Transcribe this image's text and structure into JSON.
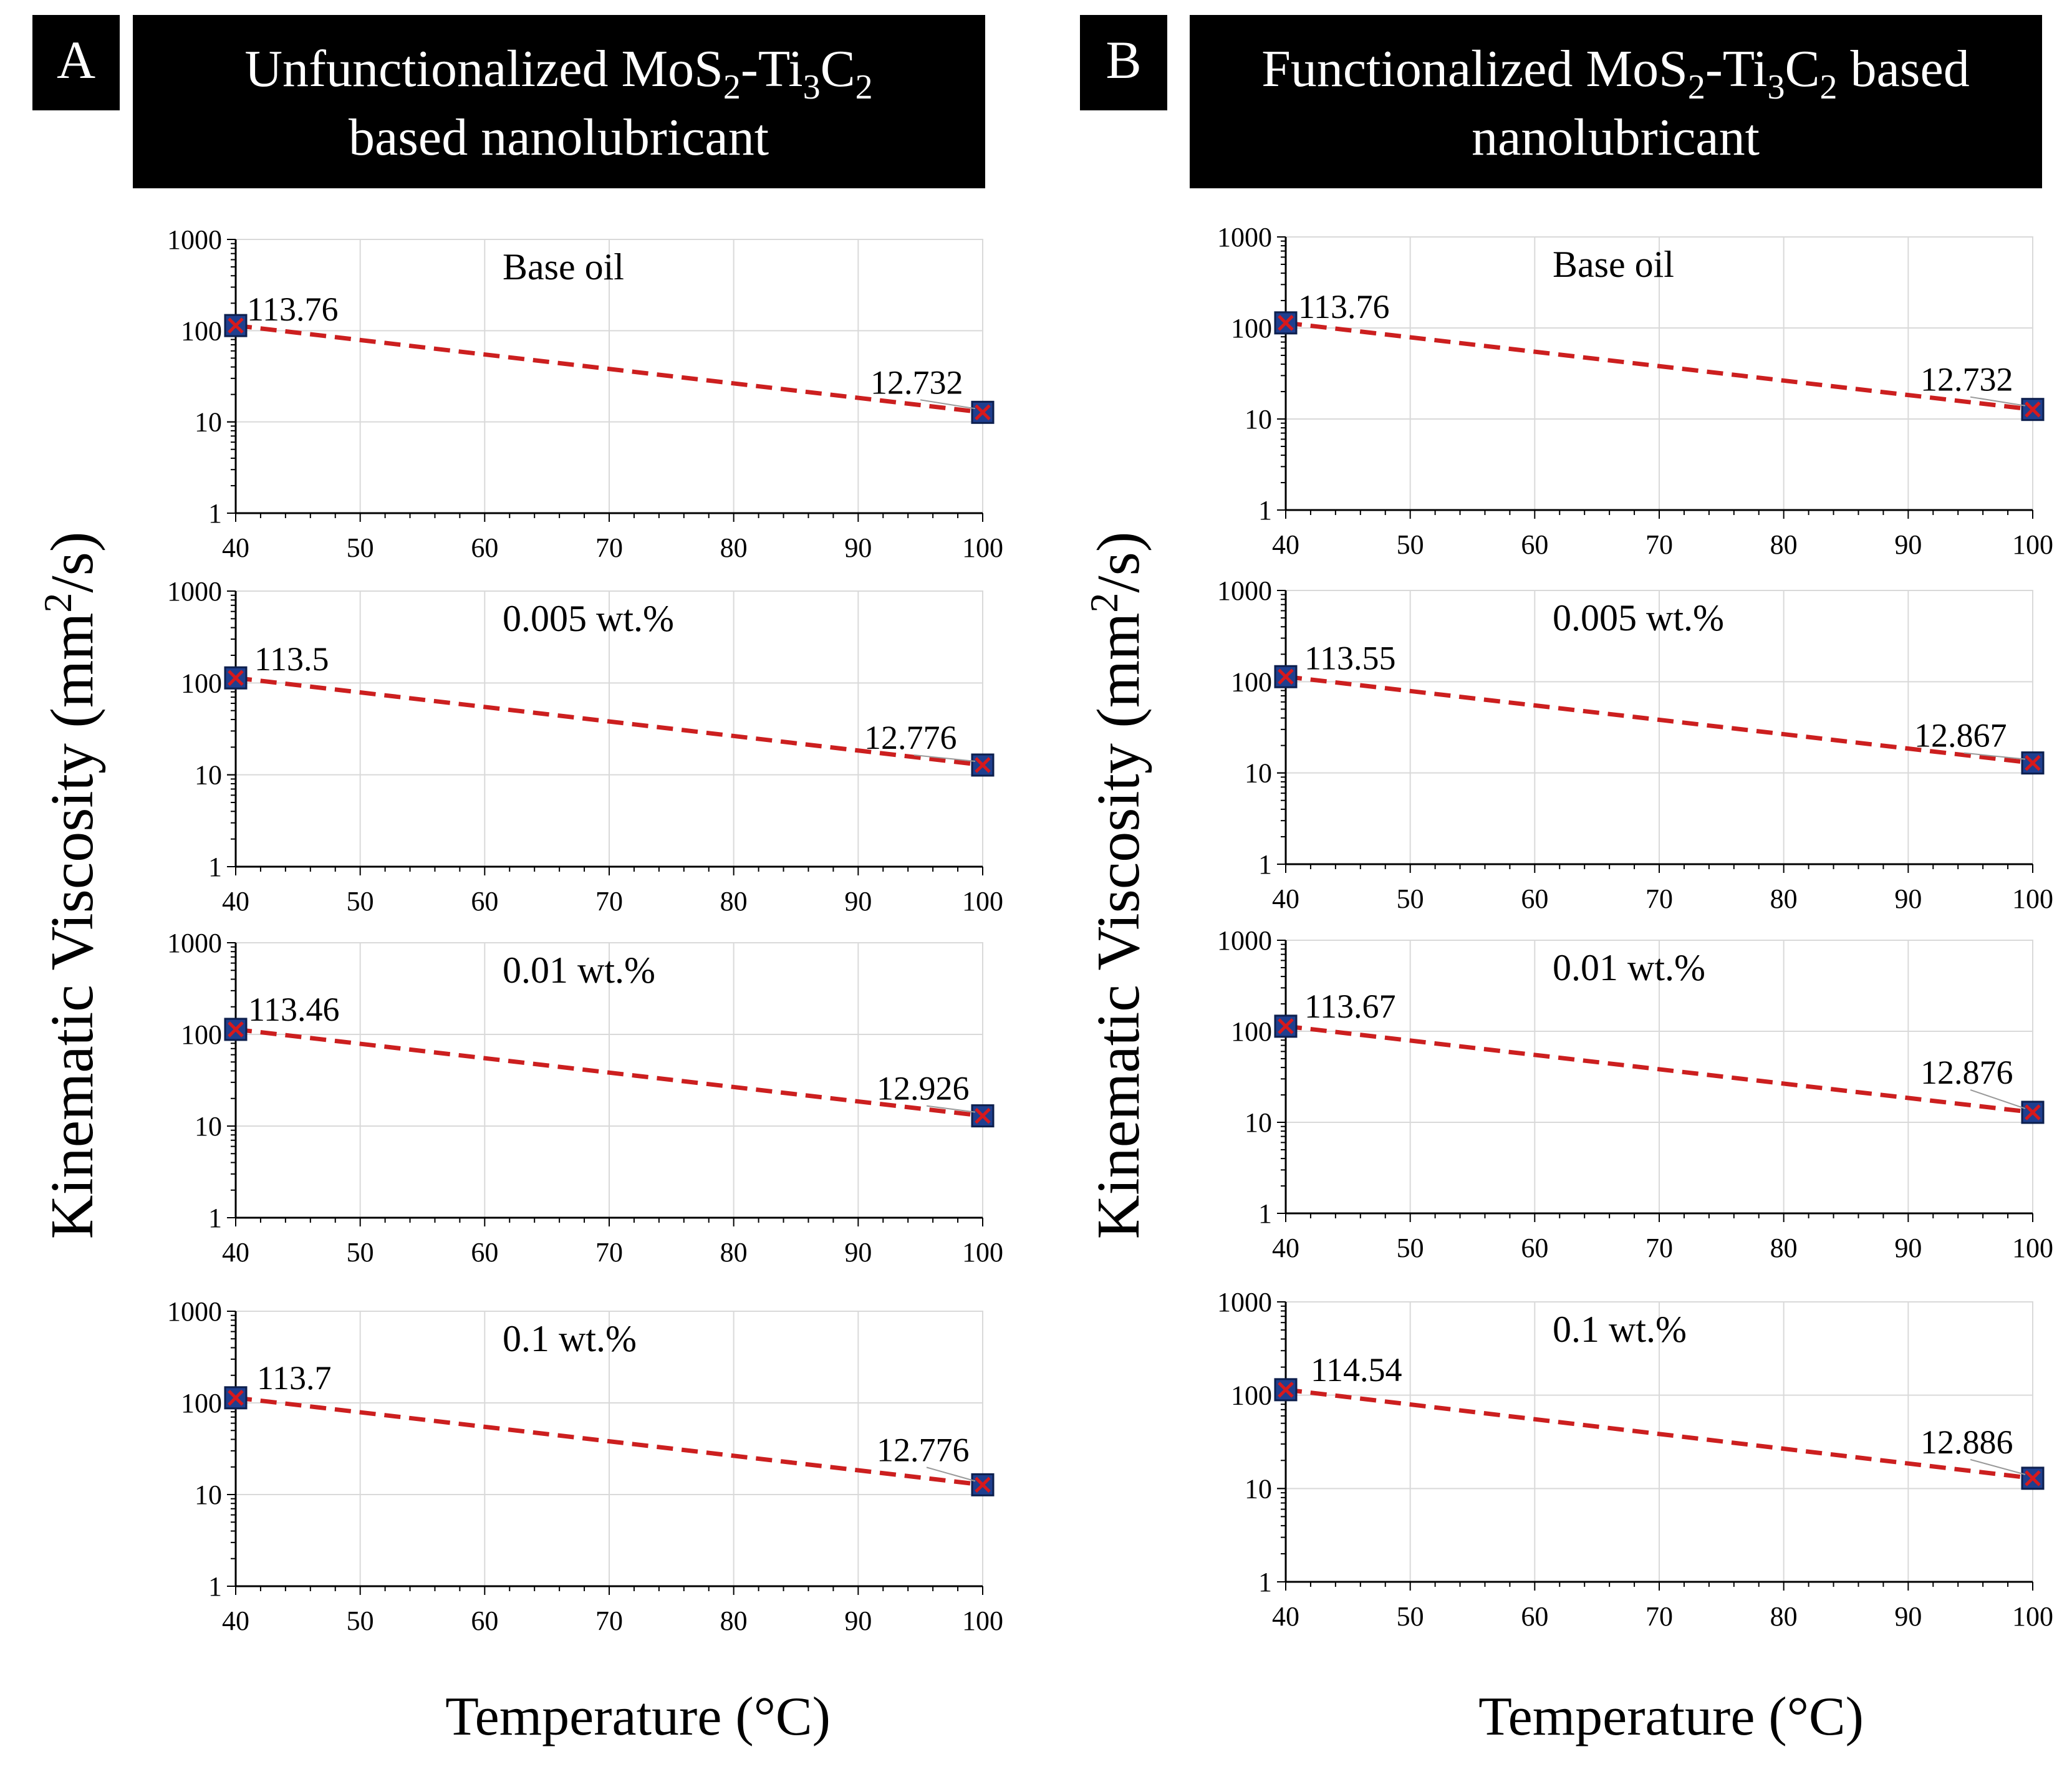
{
  "figure": {
    "panels": [
      {
        "letter": "A",
        "title_line1": [
          "Unfunctionalized MoS",
          "2",
          "-Ti",
          "3",
          "C",
          "2"
        ],
        "title_line2": "based nanolubricant",
        "ylabel": [
          "Kinematic Viscosity (mm",
          "2",
          "/s)"
        ],
        "xlabel": "Temperature (°C)"
      },
      {
        "letter": "B",
        "title_line1": [
          "Functionalized MoS",
          "2",
          "-Ti",
          "3",
          "C",
          "2",
          " based"
        ],
        "title_line2": "nanolubricant",
        "ylabel": [
          "Kinematic Viscosity (mm",
          "2",
          "/s)"
        ],
        "xlabel": "Temperature (°C)"
      }
    ]
  },
  "colors": {
    "marker_fill": "#1f3f8f",
    "marker_edge": "#0d1f4d",
    "cross": "#d7191c",
    "trend": "#cc1f1f",
    "grid": "#d9d9d9",
    "axis": "#000000",
    "title_bg": "#000000",
    "title_fg": "#ffffff"
  },
  "chart_data": [
    {
      "type": "scatter",
      "panel": "A",
      "title": "Base oil",
      "x": [
        40,
        100
      ],
      "y": [
        113.76,
        12.732
      ],
      "labels": [
        "113.76",
        "12.732"
      ],
      "xlim": [
        40,
        100
      ],
      "ylim": [
        1,
        1000
      ],
      "yscale": "log",
      "xticks": [
        "40",
        "50",
        "60",
        "70",
        "80",
        "90",
        "100"
      ],
      "yticks": [
        "1",
        "10",
        "100",
        "1000"
      ],
      "trendline": "exponential, dashed"
    },
    {
      "type": "scatter",
      "panel": "A",
      "title": "0.005 wt.%",
      "x": [
        40,
        100
      ],
      "y": [
        113.5,
        12.776
      ],
      "labels": [
        "113.5",
        "12.776"
      ],
      "xlim": [
        40,
        100
      ],
      "ylim": [
        1,
        1000
      ],
      "yscale": "log",
      "xticks": [
        "40",
        "50",
        "60",
        "70",
        "80",
        "90",
        "100"
      ],
      "yticks": [
        "1",
        "10",
        "100",
        "1000"
      ],
      "trendline": "exponential, dashed"
    },
    {
      "type": "scatter",
      "panel": "A",
      "title": "0.01 wt.%",
      "x": [
        40,
        100
      ],
      "y": [
        113.46,
        12.926
      ],
      "labels": [
        "113.46",
        "12.926"
      ],
      "xlim": [
        40,
        100
      ],
      "ylim": [
        1,
        1000
      ],
      "yscale": "log",
      "xticks": [
        "40",
        "50",
        "60",
        "70",
        "80",
        "90",
        "100"
      ],
      "yticks": [
        "1",
        "10",
        "100",
        "1000"
      ],
      "trendline": "exponential, dashed"
    },
    {
      "type": "scatter",
      "panel": "A",
      "title": "0.1  wt.%",
      "x": [
        40,
        100
      ],
      "y": [
        113.7,
        12.776
      ],
      "labels": [
        "113.7",
        "12.776"
      ],
      "xlim": [
        40,
        100
      ],
      "ylim": [
        1,
        1000
      ],
      "yscale": "log",
      "xticks": [
        "40",
        "50",
        "60",
        "70",
        "80",
        "90",
        "100"
      ],
      "yticks": [
        "1",
        "10",
        "100",
        "1000"
      ],
      "trendline": "exponential, dashed"
    },
    {
      "type": "scatter",
      "panel": "B",
      "title": "Base oil",
      "x": [
        40,
        100
      ],
      "y": [
        113.76,
        12.732
      ],
      "labels": [
        "113.76",
        "12.732"
      ],
      "xlim": [
        40,
        100
      ],
      "ylim": [
        1,
        1000
      ],
      "yscale": "log",
      "xticks": [
        "40",
        "50",
        "60",
        "70",
        "80",
        "90",
        "100"
      ],
      "yticks": [
        "1",
        "10",
        "100",
        "1000"
      ],
      "trendline": "exponential, dashed"
    },
    {
      "type": "scatter",
      "panel": "B",
      "title": "0.005 wt.%",
      "x": [
        40,
        100
      ],
      "y": [
        113.55,
        12.867
      ],
      "labels": [
        "113.55",
        "12.867"
      ],
      "xlim": [
        40,
        100
      ],
      "ylim": [
        1,
        1000
      ],
      "yscale": "log",
      "xticks": [
        "40",
        "50",
        "60",
        "70",
        "80",
        "90",
        "100"
      ],
      "yticks": [
        "1",
        "10",
        "100",
        "1000"
      ],
      "trendline": "exponential, dashed"
    },
    {
      "type": "scatter",
      "panel": "B",
      "title": "0.01 wt.%",
      "x": [
        40,
        100
      ],
      "y": [
        113.67,
        12.876
      ],
      "labels": [
        "113.67",
        "12.876"
      ],
      "xlim": [
        40,
        100
      ],
      "ylim": [
        1,
        1000
      ],
      "yscale": "log",
      "xticks": [
        "40",
        "50",
        "60",
        "70",
        "80",
        "90",
        "100"
      ],
      "yticks": [
        "1",
        "10",
        "100",
        "1000"
      ],
      "trendline": "exponential, dashed"
    },
    {
      "type": "scatter",
      "panel": "B",
      "title": "0.1  wt.%",
      "x": [
        40,
        100
      ],
      "y": [
        114.54,
        12.886
      ],
      "labels": [
        "114.54",
        "12.886"
      ],
      "xlim": [
        40,
        100
      ],
      "ylim": [
        1,
        1000
      ],
      "yscale": "log",
      "xticks": [
        "40",
        "50",
        "60",
        "70",
        "80",
        "90",
        "100"
      ],
      "yticks": [
        "1",
        "10",
        "100",
        "1000"
      ],
      "trendline": "exponential, dashed"
    }
  ]
}
